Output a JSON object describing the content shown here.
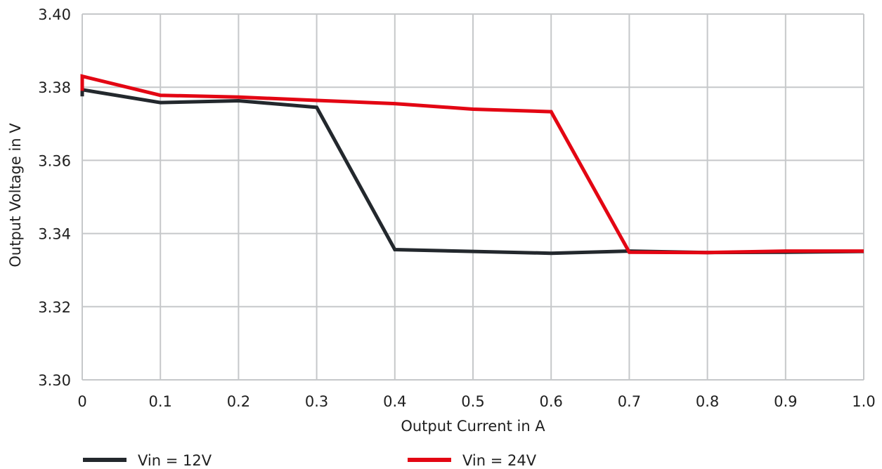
{
  "chart_data": {
    "type": "line",
    "title": "",
    "xlabel": "Output Current in A",
    "ylabel": "Output Voltage in V",
    "xlim": [
      0,
      1.0
    ],
    "ylim": [
      3.3,
      3.4
    ],
    "xticks": [
      "0",
      "0.1",
      "0.2",
      "0.3",
      "0.4",
      "0.5",
      "0.6",
      "0.7",
      "0.8",
      "0.9",
      "1.0"
    ],
    "yticks": [
      "3.30",
      "3.32",
      "3.34",
      "3.36",
      "3.38",
      "3.40"
    ],
    "grid": true,
    "legend_position": "bottom",
    "series": [
      {
        "name": "Vin = 12V",
        "color": "#23282d",
        "x": [
          0,
          0,
          0.1,
          0.2,
          0.3,
          0.4,
          0.5,
          0.6,
          0.7,
          0.8,
          0.9,
          1.0
        ],
        "y": [
          3.3775,
          3.3793,
          3.3758,
          3.3763,
          3.3745,
          3.3356,
          3.3351,
          3.3346,
          3.3352,
          3.3348,
          3.3349,
          3.3351
        ]
      },
      {
        "name": "Vin = 24V",
        "color": "#e30613",
        "x": [
          0,
          0,
          0.1,
          0.2,
          0.3,
          0.4,
          0.5,
          0.6,
          0.7,
          0.8,
          0.9,
          1.0
        ],
        "y": [
          3.379,
          3.383,
          3.3778,
          3.3773,
          3.3764,
          3.3755,
          3.374,
          3.3733,
          3.3349,
          3.3348,
          3.3352,
          3.3352
        ]
      }
    ]
  }
}
